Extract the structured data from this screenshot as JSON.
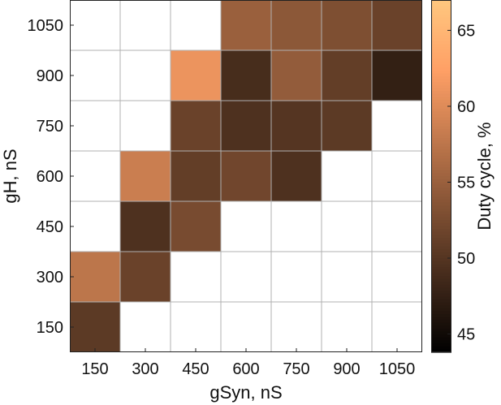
{
  "chart_data": {
    "type": "heatmap",
    "xlabel": "gSyn, nS",
    "ylabel": "gH, nS",
    "x": [
      150,
      300,
      450,
      600,
      750,
      900,
      1050
    ],
    "y": [
      150,
      300,
      450,
      600,
      750,
      900,
      1050
    ],
    "z": [
      [
        50.5,
        null,
        null,
        null,
        null,
        null,
        null
      ],
      [
        57.5,
        51.5,
        null,
        null,
        null,
        null,
        null
      ],
      [
        null,
        49.5,
        52.5,
        null,
        null,
        null,
        null
      ],
      [
        null,
        58.5,
        51.0,
        52.0,
        49.5,
        null,
        null
      ],
      [
        null,
        null,
        51.5,
        49.5,
        50.0,
        50.5,
        null
      ],
      [
        null,
        null,
        61.0,
        49.0,
        54.5,
        51.0,
        47.5
      ],
      [
        null,
        null,
        null,
        55.0,
        54.0,
        53.0,
        51.5
      ]
    ],
    "colorbar": {
      "label": "Duty cycle, %",
      "range": [
        43.8,
        67
      ],
      "ticks": [
        45,
        50,
        55,
        60,
        65
      ],
      "colormap": "copper"
    },
    "grid": true,
    "empty_cell_color": "#ffffff",
    "grid_color": "#b0b0b0"
  }
}
